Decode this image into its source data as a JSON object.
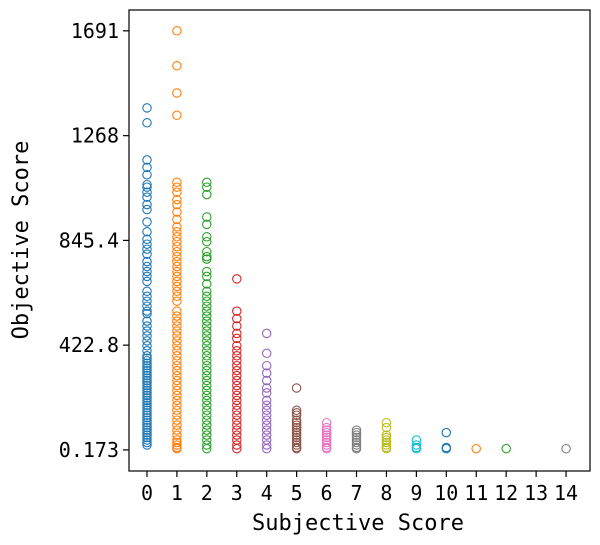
{
  "chart_data": {
    "type": "scatter",
    "title": "",
    "xlabel": "Subjective Score",
    "ylabel": "Objective Score",
    "xlim": [
      -0.6,
      14.8
    ],
    "ylim": [
      -85,
      1775
    ],
    "x_ticks": [
      0,
      1,
      2,
      3,
      4,
      5,
      6,
      7,
      8,
      9,
      10,
      11,
      12,
      13,
      14
    ],
    "x_tick_labels": [
      "0",
      "1",
      "2",
      "3",
      "4",
      "5",
      "6",
      "7",
      "8",
      "9",
      "10",
      "11",
      "12",
      "13",
      "14"
    ],
    "y_ticks": [
      0.173,
      422.8,
      845.4,
      1268,
      1691
    ],
    "y_tick_labels": [
      "0.173",
      "422.8",
      "845.4",
      "1268",
      "1691"
    ],
    "grid": false,
    "legend": "none",
    "marker": "hollow-circle",
    "series": [
      {
        "x": 0,
        "color": "#1f77b4",
        "values": [
          1380,
          1320,
          1170,
          1140,
          1110,
          1070,
          1060,
          1040,
          1020,
          990,
          970,
          920,
          880,
          850,
          830,
          810,
          790,
          760,
          740,
          720,
          700,
          680,
          640,
          620,
          600,
          580,
          560,
          550,
          520,
          500,
          480,
          460,
          440,
          420,
          400,
          380,
          370,
          360,
          350,
          340,
          330,
          320,
          310,
          300,
          290,
          280,
          270,
          260,
          250,
          240,
          230,
          220,
          210,
          200,
          190,
          180,
          170,
          160,
          150,
          140,
          130,
          120,
          110,
          100,
          90,
          80,
          70,
          60,
          50,
          40,
          30,
          20
        ]
      },
      {
        "x": 1,
        "color": "#ff7f0e",
        "values": [
          1691,
          1550,
          1440,
          1350,
          1080,
          1060,
          1040,
          1010,
          990,
          960,
          930,
          900,
          880,
          860,
          840,
          820,
          800,
          780,
          760,
          740,
          720,
          700,
          680,
          660,
          640,
          620,
          600,
          560,
          540,
          520,
          500,
          480,
          460,
          440,
          420,
          400,
          380,
          360,
          340,
          320,
          300,
          280,
          260,
          240,
          220,
          200,
          180,
          160,
          140,
          120,
          100,
          80,
          60,
          40,
          30,
          20,
          10,
          5
        ]
      },
      {
        "x": 2,
        "color": "#2ca02c",
        "values": [
          1080,
          1060,
          1030,
          940,
          910,
          860,
          840,
          800,
          780,
          770,
          720,
          700,
          670,
          640,
          620,
          600,
          580,
          560,
          540,
          520,
          500,
          480,
          460,
          440,
          420,
          400,
          380,
          360,
          340,
          320,
          300,
          280,
          260,
          240,
          220,
          200,
          180,
          160,
          140,
          120,
          100,
          80,
          60,
          40,
          20,
          5
        ]
      },
      {
        "x": 3,
        "color": "#d62728",
        "values": [
          690,
          560,
          530,
          500,
          470,
          450,
          420,
          400,
          380,
          360,
          340,
          320,
          300,
          280,
          260,
          240,
          220,
          200,
          180,
          160,
          140,
          120,
          100,
          80,
          60,
          40,
          20,
          5
        ]
      },
      {
        "x": 4,
        "color": "#9467bd",
        "values": [
          470,
          390,
          340,
          310,
          280,
          250,
          230,
          200,
          180,
          160,
          140,
          120,
          100,
          80,
          60,
          40,
          20,
          5
        ]
      },
      {
        "x": 5,
        "color": "#8c564b",
        "values": [
          250,
          160,
          150,
          140,
          120,
          110,
          100,
          90,
          80,
          70,
          60,
          50,
          40,
          30,
          20,
          10,
          5
        ]
      },
      {
        "x": 6,
        "color": "#e377c2",
        "values": [
          110,
          90,
          80,
          70,
          60,
          50,
          40,
          30,
          20,
          10,
          5
        ]
      },
      {
        "x": 7,
        "color": "#7f7f7f",
        "values": [
          80,
          70,
          60,
          50,
          40,
          30,
          20,
          10,
          5
        ]
      },
      {
        "x": 8,
        "color": "#bcbd22",
        "values": [
          110,
          90,
          60,
          50,
          40,
          30,
          20,
          10,
          5
        ]
      },
      {
        "x": 9,
        "color": "#17becf",
        "values": [
          40,
          20,
          10,
          5
        ]
      },
      {
        "x": 10,
        "color": "#1f77b4",
        "values": [
          70,
          10,
          5
        ]
      },
      {
        "x": 11,
        "color": "#ff7f0e",
        "values": [
          5
        ]
      },
      {
        "x": 12,
        "color": "#2ca02c",
        "values": [
          5
        ]
      },
      {
        "x": 14,
        "color": "#7f7f7f",
        "values": [
          5
        ]
      }
    ]
  }
}
